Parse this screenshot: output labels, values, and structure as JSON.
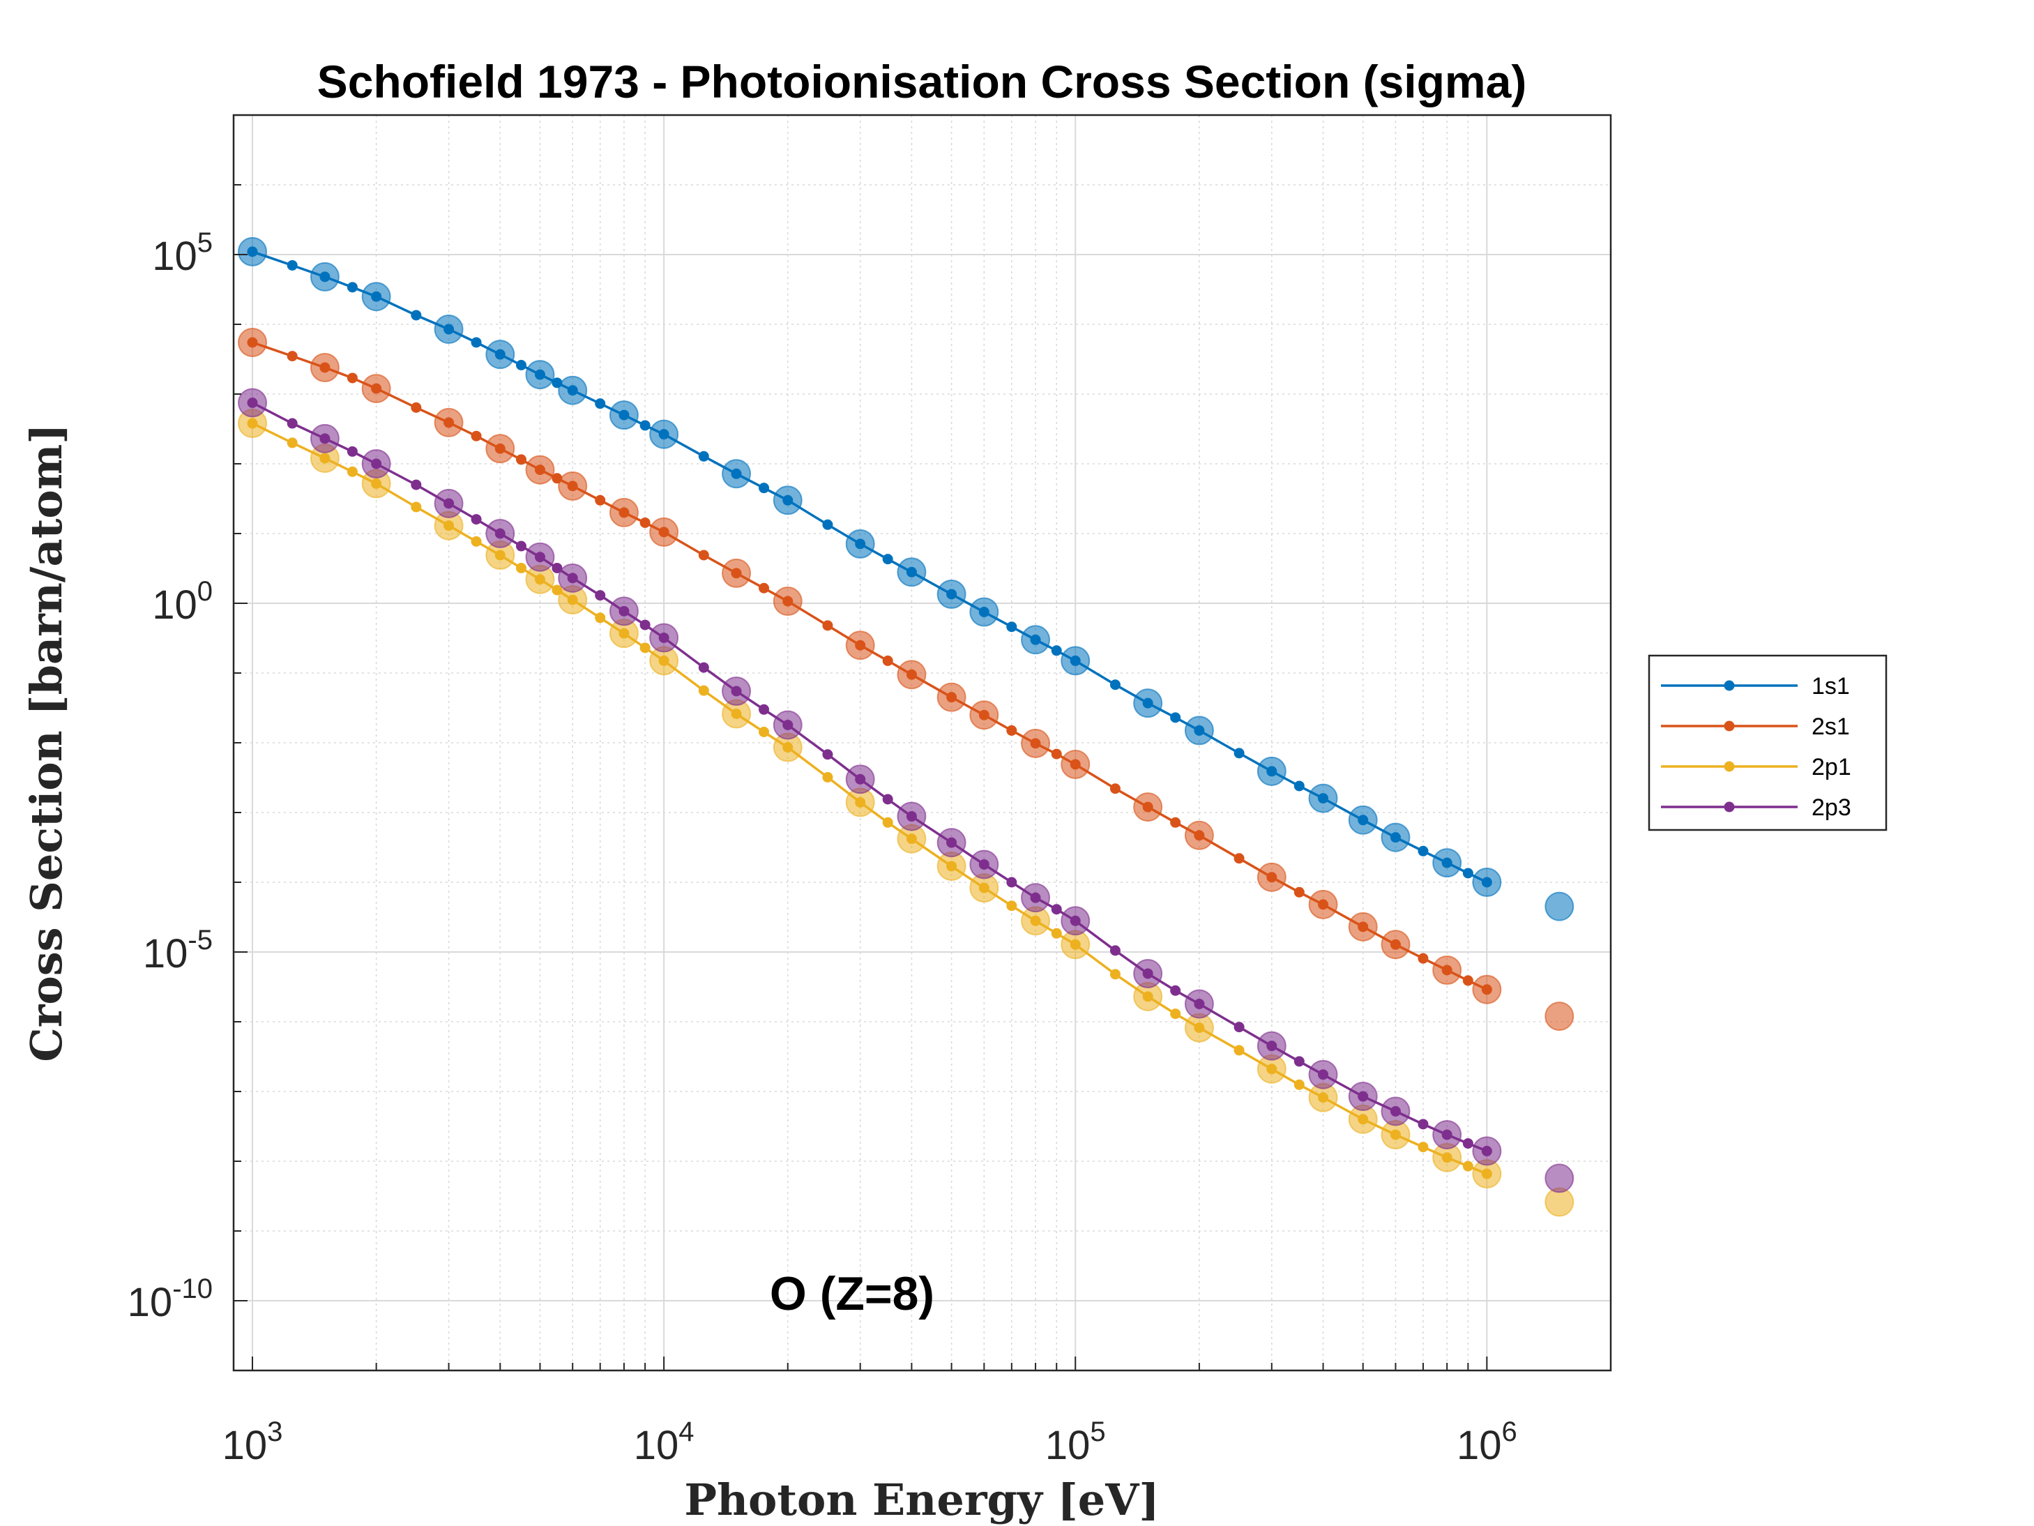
{
  "chart_data": {
    "type": "line",
    "title": "Schofield 1973 - Photoionisation Cross Section (sigma)",
    "xlabel": "Photon Energy [eV]",
    "ylabel": "Cross Section [barn/atom]",
    "annotation": "O (Z=8)",
    "xscale": "log",
    "yscale": "log",
    "xlim": [
      900,
      2000000
    ],
    "ylim": [
      1e-11,
      10000000.0
    ],
    "grid": true,
    "legend_position": "outside-right",
    "xticks": [
      {
        "value": 1000,
        "base": "10",
        "exp": "3"
      },
      {
        "value": 10000,
        "base": "10",
        "exp": "4"
      },
      {
        "value": 100000,
        "base": "10",
        "exp": "5"
      },
      {
        "value": 1000000,
        "base": "10",
        "exp": "6"
      }
    ],
    "yticks": [
      {
        "value": 100000,
        "base": "10",
        "exp": "5"
      },
      {
        "value": 1,
        "base": "10",
        "exp": "0"
      },
      {
        "value": 1e-05,
        "base": "10",
        "exp": "-5"
      },
      {
        "value": 1e-10,
        "base": "10",
        "exp": "-10"
      }
    ],
    "series": [
      {
        "name": "1s1",
        "color": "#0072BD",
        "line_x": [
          1000,
          1250,
          1500,
          1750,
          2000,
          2500,
          3000,
          3500,
          4000,
          4500,
          5000,
          5500,
          6000,
          7000,
          8000,
          9000,
          10000,
          12500,
          15000,
          17500,
          20000,
          25000,
          30000,
          35000,
          40000,
          50000,
          60000,
          70000,
          80000,
          90000,
          100000,
          125000,
          150000,
          175000,
          200000,
          250000,
          300000,
          350000,
          400000,
          500000,
          600000,
          700000,
          800000,
          900000,
          1000000
        ],
        "line_y": [
          110000,
          70000,
          48000,
          34000,
          25000,
          13500,
          8500,
          5500,
          3700,
          2600,
          1900,
          1450,
          1130,
          730,
          500,
          355,
          265,
          128,
          72,
          45,
          30,
          13.4,
          7.1,
          4.3,
          2.8,
          1.35,
          0.75,
          0.46,
          0.3,
          0.21,
          0.15,
          0.068,
          0.037,
          0.023,
          0.015,
          0.0071,
          0.0039,
          0.0024,
          0.0016,
          0.00078,
          0.00044,
          0.00028,
          0.00019,
          0.000135,
          0.0001
        ],
        "marker_x": [
          1000,
          1500,
          2000,
          3000,
          4000,
          5000,
          6000,
          8000,
          10000,
          15000,
          20000,
          30000,
          40000,
          50000,
          60000,
          80000,
          100000,
          150000,
          200000,
          300000,
          400000,
          500000,
          600000,
          800000,
          1000000,
          1500000
        ],
        "marker_y": [
          110000,
          48000,
          25000,
          8500,
          3700,
          1900,
          1130,
          500,
          265,
          72,
          30,
          7.1,
          2.8,
          1.35,
          0.75,
          0.3,
          0.15,
          0.037,
          0.015,
          0.0039,
          0.0016,
          0.00078,
          0.00044,
          0.00019,
          0.0001,
          4.5e-05
        ]
      },
      {
        "name": "2s1",
        "color": "#D95319",
        "line_x": [
          1000,
          1250,
          1500,
          1750,
          2000,
          2500,
          3000,
          3500,
          4000,
          4500,
          5000,
          5500,
          6000,
          7000,
          8000,
          9000,
          10000,
          12500,
          15000,
          17500,
          20000,
          25000,
          30000,
          35000,
          40000,
          50000,
          60000,
          70000,
          80000,
          90000,
          100000,
          125000,
          150000,
          175000,
          200000,
          250000,
          300000,
          350000,
          400000,
          500000,
          600000,
          700000,
          800000,
          900000,
          1000000
        ],
        "line_y": [
          5500,
          3500,
          2400,
          1700,
          1200,
          640,
          390,
          250,
          165,
          115,
          82,
          62,
          48,
          30,
          20,
          14.3,
          10.5,
          4.9,
          2.7,
          1.65,
          1.07,
          0.48,
          0.25,
          0.15,
          0.095,
          0.045,
          0.025,
          0.015,
          0.0098,
          0.0069,
          0.0049,
          0.0022,
          0.0012,
          0.00072,
          0.00047,
          0.00022,
          0.000118,
          7.2e-05,
          4.8e-05,
          2.3e-05,
          1.28e-05,
          8.1e-06,
          5.5e-06,
          3.9e-06,
          2.9e-06
        ],
        "marker_x": [
          1000,
          1500,
          2000,
          3000,
          4000,
          5000,
          6000,
          8000,
          10000,
          15000,
          20000,
          30000,
          40000,
          50000,
          60000,
          80000,
          100000,
          150000,
          200000,
          300000,
          400000,
          500000,
          600000,
          800000,
          1000000,
          1500000
        ],
        "marker_y": [
          5500,
          2400,
          1200,
          390,
          165,
          82,
          48,
          20,
          10.5,
          2.7,
          1.07,
          0.25,
          0.095,
          0.045,
          0.025,
          0.0098,
          0.0049,
          0.0012,
          0.00047,
          0.000118,
          4.8e-05,
          2.3e-05,
          1.28e-05,
          5.5e-06,
          2.9e-06,
          1.2e-06
        ]
      },
      {
        "name": "2p1",
        "color": "#EDB120",
        "line_x": [
          1000,
          1250,
          1500,
          1750,
          2000,
          2500,
          3000,
          3500,
          4000,
          4500,
          5000,
          5500,
          6000,
          7000,
          8000,
          9000,
          10000,
          12500,
          15000,
          17500,
          20000,
          25000,
          30000,
          35000,
          40000,
          50000,
          60000,
          70000,
          80000,
          90000,
          100000,
          125000,
          150000,
          175000,
          200000,
          250000,
          300000,
          350000,
          400000,
          500000,
          600000,
          700000,
          800000,
          900000,
          1000000
        ],
        "line_y": [
          380,
          200,
          120,
          77,
          52,
          24,
          13,
          7.7,
          4.9,
          3.2,
          2.2,
          1.55,
          1.12,
          0.62,
          0.37,
          0.23,
          0.15,
          0.056,
          0.026,
          0.0143,
          0.0086,
          0.0032,
          0.0014,
          0.00072,
          0.00042,
          0.00017,
          8.3e-05,
          4.6e-05,
          2.8e-05,
          1.85e-05,
          1.28e-05,
          4.8e-06,
          2.3e-06,
          1.3e-06,
          8.2e-07,
          3.9e-07,
          2.1e-07,
          1.25e-07,
          8.2e-08,
          4e-08,
          2.4e-08,
          1.6e-08,
          1.13e-08,
          8.5e-09,
          6.6e-09
        ],
        "marker_x": [
          1000,
          1500,
          2000,
          3000,
          4000,
          5000,
          6000,
          8000,
          10000,
          15000,
          20000,
          30000,
          40000,
          50000,
          60000,
          80000,
          100000,
          150000,
          200000,
          300000,
          400000,
          500000,
          600000,
          800000,
          1000000,
          1500000
        ],
        "marker_y": [
          380,
          120,
          52,
          13,
          4.9,
          2.2,
          1.12,
          0.37,
          0.15,
          0.026,
          0.0086,
          0.0014,
          0.00042,
          0.00017,
          8.3e-05,
          2.8e-05,
          1.28e-05,
          2.3e-06,
          8.2e-07,
          2.1e-07,
          8.2e-08,
          4e-08,
          2.4e-08,
          1.13e-08,
          6.6e-09,
          2.6e-09
        ]
      },
      {
        "name": "2p3",
        "color": "#7E2F8E",
        "line_x": [
          1000,
          1250,
          1500,
          1750,
          2000,
          2500,
          3000,
          3500,
          4000,
          4500,
          5000,
          5500,
          6000,
          7000,
          8000,
          9000,
          10000,
          12500,
          15000,
          17500,
          20000,
          25000,
          30000,
          35000,
          40000,
          50000,
          60000,
          70000,
          80000,
          90000,
          100000,
          125000,
          150000,
          175000,
          200000,
          250000,
          300000,
          350000,
          400000,
          500000,
          600000,
          700000,
          800000,
          900000,
          1000000
        ],
        "line_y": [
          750,
          380,
          230,
          150,
          100,
          50,
          27,
          16,
          10,
          6.6,
          4.6,
          3.2,
          2.3,
          1.3,
          0.77,
          0.49,
          0.32,
          0.12,
          0.055,
          0.03,
          0.018,
          0.0068,
          0.003,
          0.00155,
          0.00088,
          0.00037,
          0.00018,
          0.0001,
          6e-05,
          4.1e-05,
          2.8e-05,
          1.05e-05,
          4.9e-06,
          2.8e-06,
          1.8e-06,
          8.4e-07,
          4.5e-07,
          2.7e-07,
          1.75e-07,
          8.5e-08,
          5.2e-08,
          3.4e-08,
          2.4e-08,
          1.8e-08,
          1.4e-08
        ],
        "marker_x": [
          1000,
          1500,
          2000,
          3000,
          4000,
          5000,
          6000,
          8000,
          10000,
          15000,
          20000,
          30000,
          40000,
          50000,
          60000,
          80000,
          100000,
          150000,
          200000,
          300000,
          400000,
          500000,
          600000,
          800000,
          1000000,
          1500000
        ],
        "marker_y": [
          750,
          230,
          100,
          27,
          10,
          4.6,
          2.3,
          0.77,
          0.32,
          0.055,
          0.018,
          0.003,
          0.00088,
          0.00037,
          0.00018,
          6e-05,
          2.8e-05,
          4.9e-06,
          1.8e-06,
          4.5e-07,
          1.75e-07,
          8.5e-08,
          5.2e-08,
          2.4e-08,
          1.4e-08,
          5.7e-09
        ]
      }
    ]
  }
}
